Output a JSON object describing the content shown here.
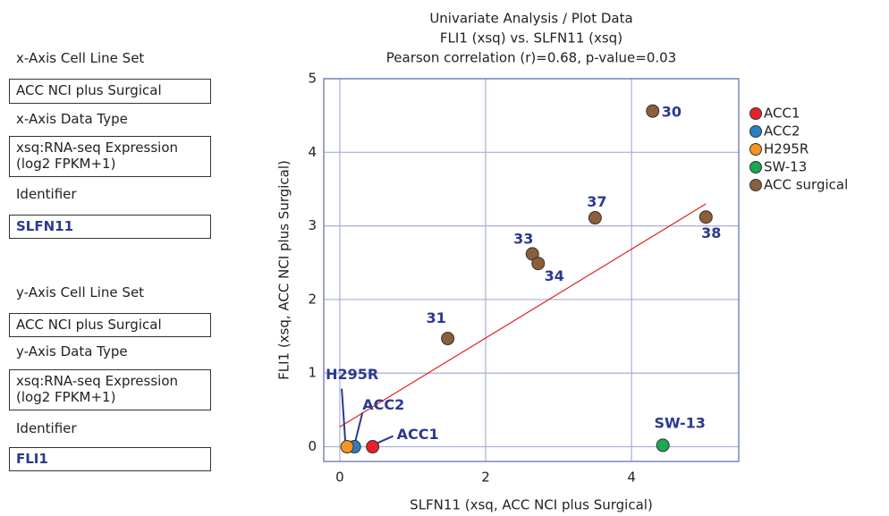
{
  "left_panel": {
    "x_axis": {
      "cell_line_set_label": "x-Axis Cell Line Set",
      "cell_line_set": "ACC NCI plus Surgical",
      "data_type_label": "x-Axis Data Type",
      "data_type": [
        "xsq:RNA-seq Expression",
        "(log2 FPKM+1)"
      ],
      "identifier_label": "Identifier",
      "identifier": "SLFN11"
    },
    "y_axis": {
      "cell_line_set_label": "y-Axis Cell Line Set",
      "cell_line_set": "ACC NCI plus Surgical",
      "data_type_label": "y-Axis Data Type",
      "data_type": [
        "xsq:RNA-seq Expression",
        "(log2 FPKM+1)"
      ],
      "identifier_label": "Identifier",
      "identifier": "FLI1"
    }
  },
  "chart_data": {
    "type": "scatter",
    "title": [
      "Univariate Analysis / Plot Data",
      "FLI1 (xsq) vs. SLFN11 (xsq)",
      "Pearson correlation (r)=0.68, p-value=0.03"
    ],
    "x_label": "SLFN11 (xsq, ACC NCI plus Surgical)",
    "y_label": "FLI1 (xsq, ACC NCI plus Surgical)",
    "xlim": [
      -0.22,
      5.47
    ],
    "xticks": [
      0,
      2,
      4
    ],
    "ylim": [
      -0.2,
      5
    ],
    "yticks": [
      0,
      1,
      2,
      3,
      4,
      5
    ],
    "grid": true,
    "series": [
      {
        "name": "ACC1",
        "color": "#e8202a",
        "x": [
          0.45
        ],
        "y": [
          0
        ],
        "labels": [
          "ACC1"
        ]
      },
      {
        "name": "ACC2",
        "color": "#2a7fc4",
        "x": [
          0.2
        ],
        "y": [
          0
        ],
        "labels": [
          "ACC2"
        ]
      },
      {
        "name": "H295R",
        "color": "#f7941d",
        "x": [
          0.1
        ],
        "y": [
          0
        ],
        "labels": [
          "H295R"
        ]
      },
      {
        "name": "SW-13",
        "color": "#1aa850",
        "x": [
          4.43
        ],
        "y": [
          0.02
        ],
        "labels": [
          "SW-13"
        ]
      },
      {
        "name": "ACC surgical",
        "color": "#8b5e3c",
        "x": [
          4.29,
          1.48,
          2.64,
          2.72,
          3.5,
          5.02
        ],
        "y": [
          4.56,
          1.47,
          2.62,
          2.49,
          3.11,
          3.12
        ],
        "labels": [
          "30",
          "31",
          "33",
          "34",
          "37",
          "38"
        ]
      }
    ],
    "trend_line": {
      "color": "#e02020",
      "x": [
        0,
        5.02
      ],
      "y": [
        0.27,
        3.3
      ]
    }
  }
}
